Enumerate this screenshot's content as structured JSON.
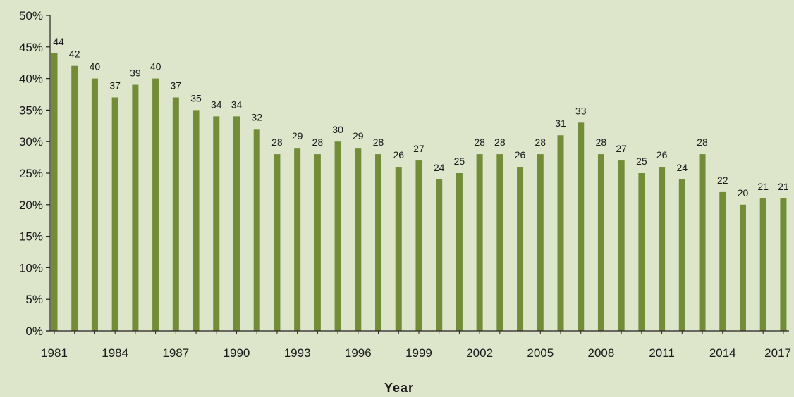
{
  "chart_data": {
    "type": "bar",
    "title": "",
    "xlabel": "Year",
    "ylabel": "",
    "ylim": [
      0,
      50
    ],
    "y_ticks": [
      "0%",
      "5%",
      "10%",
      "15%",
      "20%",
      "25%",
      "30%",
      "35%",
      "40%",
      "45%",
      "50%"
    ],
    "x_tick_labels": [
      "1981",
      "1984",
      "1987",
      "1990",
      "1993",
      "1996",
      "1999",
      "2002",
      "2005",
      "2008",
      "2011",
      "2014",
      "2017"
    ],
    "categories": [
      "1981",
      "1982",
      "1983",
      "1984",
      "1985",
      "1986",
      "1987",
      "1988",
      "1989",
      "1990",
      "1991",
      "1992",
      "1993",
      "1994",
      "1995",
      "1996",
      "1997",
      "1998",
      "1999",
      "2000",
      "2001",
      "2002",
      "2003",
      "2004",
      "2005",
      "2006",
      "2007",
      "2008",
      "2009",
      "2010",
      "2011",
      "2012",
      "2013",
      "2014",
      "2015",
      "2016",
      "2017"
    ],
    "values": [
      44,
      42,
      40,
      37,
      39,
      40,
      37,
      35,
      34,
      34,
      32,
      28,
      29,
      28,
      30,
      29,
      28,
      26,
      27,
      24,
      25,
      28,
      28,
      26,
      28,
      31,
      33,
      28,
      27,
      25,
      26,
      24,
      28,
      22,
      20,
      21,
      21
    ],
    "bar_color": "#728c37",
    "grid": false,
    "legend": "none"
  }
}
